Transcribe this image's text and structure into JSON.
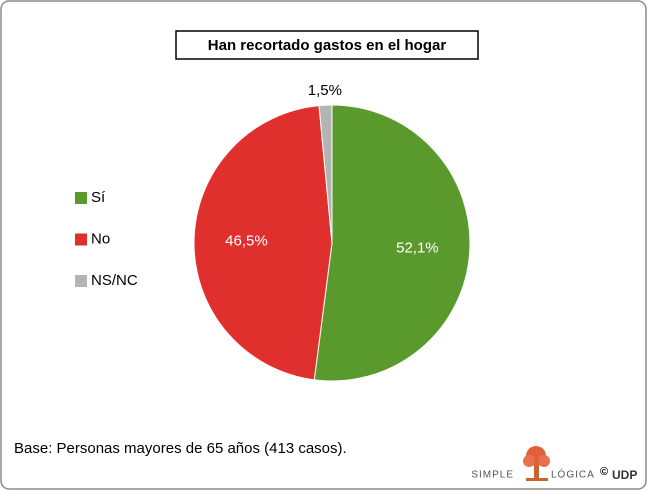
{
  "chart_data": {
    "type": "pie",
    "title": "Han recortado gastos en el hogar",
    "categories": [
      "Sí",
      "No",
      "NS/NC"
    ],
    "values": [
      52.1,
      46.5,
      1.5
    ],
    "value_labels": [
      "52,1%",
      "46,5%",
      "1,5%"
    ],
    "colors": [
      "#5a9a2c",
      "#e0302e",
      "#b4b4b4"
    ],
    "legend": "left",
    "footnote": "Base: Personas mayores de 65 años (413 casos).",
    "logo": {
      "left": "SIMPLE",
      "right": "LÓGICA",
      "copyright": "©",
      "brand": "UDP"
    }
  }
}
